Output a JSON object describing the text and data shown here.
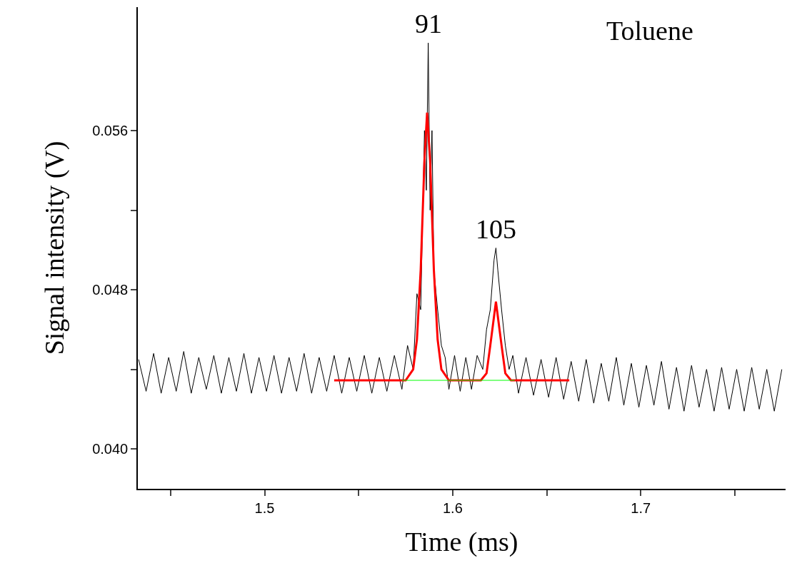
{
  "chart_data": {
    "type": "line",
    "xlabel": "Time (ms)",
    "ylabel": "Signal intensity (V)",
    "xlim": [
      1.4326,
      1.777
    ],
    "ylim": [
      0.038,
      0.0622
    ],
    "xticks": [
      {
        "value": 1.45,
        "label": null
      },
      1.5,
      {
        "value": 1.55,
        "label": null
      },
      1.6,
      {
        "value": 1.65,
        "label": null
      },
      1.7,
      {
        "value": 1.75,
        "label": null
      }
    ],
    "yticks": [
      {
        "value": 0.04,
        "label": "0.040"
      },
      {
        "value": 0.044,
        "label": null
      },
      {
        "value": 0.048,
        "label": "0.048"
      },
      {
        "value": 0.052,
        "label": null
      },
      {
        "value": 0.056,
        "label": "0.056"
      }
    ],
    "grid": false,
    "marker": "none",
    "line_style": "solid",
    "annotations": [
      {
        "text": "91",
        "x": 1.587,
        "y": 0.0604
      },
      {
        "text": "105",
        "x": 1.623,
        "y": 0.0501
      },
      "Toluene"
    ],
    "series": [
      {
        "color": "#000000",
        "x": [
          1.433,
          1.437,
          1.441,
          1.445,
          1.449,
          1.453,
          1.457,
          1.461,
          1.465,
          1.469,
          1.473,
          1.477,
          1.481,
          1.485,
          1.489,
          1.493,
          1.497,
          1.501,
          1.505,
          1.509,
          1.513,
          1.517,
          1.521,
          1.525,
          1.529,
          1.533,
          1.537,
          1.541,
          1.545,
          1.549,
          1.553,
          1.557,
          1.561,
          1.565,
          1.569,
          1.573,
          1.576,
          1.579,
          1.581,
          1.583,
          1.585,
          1.586,
          1.587,
          1.588,
          1.589,
          1.59,
          1.592,
          1.594,
          1.596,
          1.598,
          1.601,
          1.604,
          1.607,
          1.61,
          1.613,
          1.616,
          1.618,
          1.62,
          1.622,
          1.623,
          1.624,
          1.626,
          1.628,
          1.63,
          1.632,
          1.635,
          1.639,
          1.643,
          1.647,
          1.651,
          1.655,
          1.659,
          1.663,
          1.667,
          1.671,
          1.675,
          1.679,
          1.683,
          1.687,
          1.691,
          1.695,
          1.699,
          1.703,
          1.707,
          1.711,
          1.715,
          1.719,
          1.723,
          1.727,
          1.731,
          1.735,
          1.739,
          1.743,
          1.747,
          1.751,
          1.755,
          1.759,
          1.763,
          1.767,
          1.771,
          1.775
        ],
        "values": [
          0.0445,
          0.0429,
          0.0448,
          0.0428,
          0.0446,
          0.0429,
          0.0449,
          0.0428,
          0.0446,
          0.043,
          0.0447,
          0.0428,
          0.0446,
          0.0429,
          0.0448,
          0.0428,
          0.0446,
          0.0429,
          0.0447,
          0.0428,
          0.0446,
          0.0429,
          0.0448,
          0.0428,
          0.0446,
          0.0429,
          0.0447,
          0.0428,
          0.0446,
          0.0429,
          0.0447,
          0.0428,
          0.0446,
          0.0429,
          0.0447,
          0.043,
          0.0452,
          0.044,
          0.0478,
          0.047,
          0.056,
          0.053,
          0.0604,
          0.052,
          0.056,
          0.049,
          0.047,
          0.0452,
          0.0446,
          0.043,
          0.0447,
          0.0429,
          0.0446,
          0.043,
          0.0447,
          0.044,
          0.046,
          0.047,
          0.0495,
          0.0501,
          0.049,
          0.047,
          0.0452,
          0.044,
          0.0447,
          0.0428,
          0.0446,
          0.0427,
          0.0445,
          0.0426,
          0.0446,
          0.0425,
          0.0444,
          0.0424,
          0.0445,
          0.0423,
          0.0443,
          0.0424,
          0.0446,
          0.0422,
          0.0443,
          0.0421,
          0.0442,
          0.0422,
          0.0444,
          0.042,
          0.0441,
          0.0419,
          0.0442,
          0.0421,
          0.044,
          0.0419,
          0.0441,
          0.042,
          0.044,
          0.0419,
          0.0441,
          0.042,
          0.044,
          0.0419,
          0.044
        ]
      },
      {
        "color": "#ff0000",
        "x": [
          1.537,
          1.575,
          1.579,
          1.581,
          1.583,
          1.585,
          1.5864,
          1.588,
          1.59,
          1.592,
          1.594,
          1.598,
          1.615,
          1.618,
          1.62,
          1.623,
          1.626,
          1.628,
          1.631,
          1.662
        ],
        "values": [
          0.04345,
          0.04345,
          0.044,
          0.0455,
          0.049,
          0.0545,
          0.0569,
          0.0545,
          0.049,
          0.0455,
          0.044,
          0.04345,
          0.04345,
          0.0438,
          0.0452,
          0.0474,
          0.0452,
          0.0438,
          0.04345,
          0.04345
        ]
      },
      {
        "color": "#00ff00",
        "x": [
          1.573,
          1.633
        ],
        "values": [
          0.04345,
          0.04345
        ]
      }
    ]
  }
}
